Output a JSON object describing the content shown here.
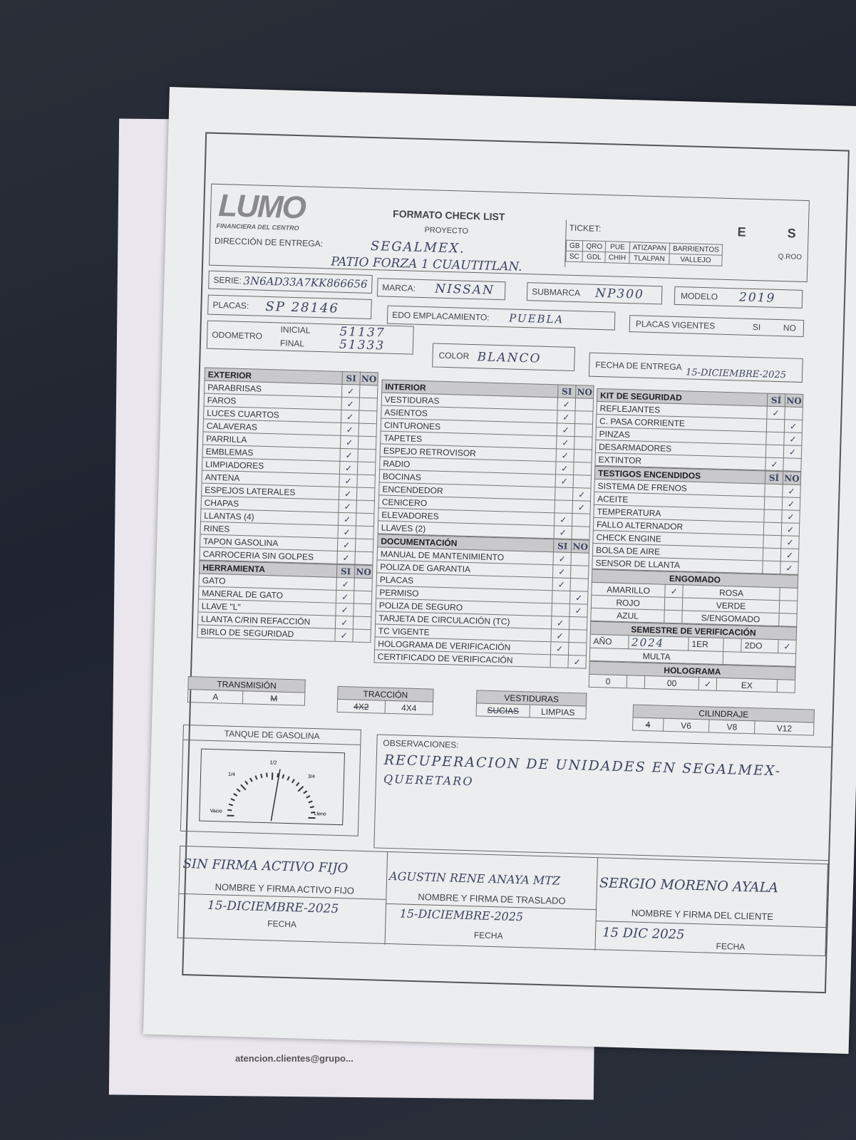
{
  "back_sheet": {
    "footer_text": "atencion.clientes@grupo..."
  },
  "header": {
    "logo_text": "LUMO",
    "logo_sub": "FINANCIERA DEL CENTRO",
    "title": "FORMATO CHECK LIST",
    "proyecto_label": "PROYECTO",
    "proyecto_value": "SEGALMEX.",
    "direccion_label": "DIRECCIÓN DE ENTREGA:",
    "direccion_value": "PATIO FORZA 1 CUAUTITLAN.",
    "ticket_label": "TICKET:",
    "e": "E",
    "s": "S",
    "locations_row1": [
      "GB",
      "QRO",
      "PUE",
      "ATIZAPAN",
      "BARRIENTOS"
    ],
    "locations_row2": [
      "SC",
      "GDL",
      "CHIH",
      "TLALPAN",
      "VALLEJO"
    ],
    "qroo": "Q.ROO"
  },
  "vehicle": {
    "serie_label": "SERIE:",
    "serie": "3N6AD33A7KK866656",
    "marca_label": "MARCA:",
    "marca": "NISSAN",
    "submarca_label": "SUBMARCA",
    "submarca": "NP300",
    "modelo_label": "MODELO",
    "modelo": "2019",
    "placas_label": "PLACAS:",
    "placas": "SP 28146",
    "edo_label": "EDO EMPLACAMIENTO:",
    "edo": "PUEBLA",
    "placas_vigentes_label": "PLACAS VIGENTES",
    "si": "SI",
    "no": "NO",
    "odometro_label": "ODOMETRO",
    "inicial_label": "INICIAL",
    "inicial": "51137",
    "final_label": "FINAL",
    "final": "51333",
    "color_label": "COLOR",
    "color": "BLANCO",
    "fecha_label": "FECHA DE ENTREGA",
    "fecha": "15-DICIEMBRE-2025"
  },
  "mark": "✓",
  "exterior": {
    "title": "EXTERIOR",
    "si": "SI",
    "no": "NO",
    "items": [
      {
        "label": "PARABRISAS",
        "v": "si"
      },
      {
        "label": "FAROS",
        "v": "si"
      },
      {
        "label": "LUCES CUARTOS",
        "v": "si"
      },
      {
        "label": "CALAVERAS",
        "v": "si"
      },
      {
        "label": "PARRILLA",
        "v": "si"
      },
      {
        "label": "EMBLEMAS",
        "v": "si"
      },
      {
        "label": "LIMPIADORES",
        "v": "si"
      },
      {
        "label": "ANTENA",
        "v": "si"
      },
      {
        "label": "ESPEJOS LATERALES",
        "v": "si"
      },
      {
        "label": "CHAPAS",
        "v": "si"
      },
      {
        "label": "LLANTAS (4)",
        "v": "si"
      },
      {
        "label": "RINES",
        "v": "si"
      },
      {
        "label": "TAPON GASOLINA",
        "v": "si"
      },
      {
        "label": "CARROCERIA SIN GOLPES",
        "v": "si"
      }
    ]
  },
  "herramienta": {
    "title": "HERRAMIENTA",
    "si": "SI",
    "no": "NO",
    "items": [
      {
        "label": "GATO",
        "v": "si"
      },
      {
        "label": "MANERAL DE GATO",
        "v": "si"
      },
      {
        "label": "LLAVE \"L\"",
        "v": "si"
      },
      {
        "label": "LLANTA C/RIN REFACCIÓN",
        "v": "si"
      },
      {
        "label": "BIRLO DE SEGURIDAD",
        "v": "si"
      }
    ]
  },
  "interior": {
    "title": "INTERIOR",
    "si": "SI",
    "no": "NO",
    "items": [
      {
        "label": "VESTIDURAS",
        "v": "si"
      },
      {
        "label": "ASIENTOS",
        "v": "si"
      },
      {
        "label": "CINTURONES",
        "v": "si"
      },
      {
        "label": "TAPETES",
        "v": "si"
      },
      {
        "label": "ESPEJO RETROVISOR",
        "v": "si"
      },
      {
        "label": "RADIO",
        "v": "si"
      },
      {
        "label": "BOCINAS",
        "v": "si"
      },
      {
        "label": "ENCENDEDOR",
        "v": "no"
      },
      {
        "label": "CENICERO",
        "v": "no"
      },
      {
        "label": "ELEVADORES",
        "v": "si"
      },
      {
        "label": "LLAVES (2)",
        "v": "si"
      }
    ]
  },
  "documentacion": {
    "title": "DOCUMENTACIÓN",
    "si": "SI",
    "no": "NO",
    "items": [
      {
        "label": "MANUAL DE MANTENIMIENTO",
        "v": "si"
      },
      {
        "label": "POLIZA DE GARANTIA",
        "v": "si"
      },
      {
        "label": "PLACAS",
        "v": "si"
      },
      {
        "label": "PERMISO",
        "v": "no"
      },
      {
        "label": "POLIZA DE SEGURO",
        "v": "no"
      },
      {
        "label": "TARJETA DE CIRCULACIÓN (TC)",
        "v": "si"
      },
      {
        "label": "TC VIGENTE",
        "v": "si"
      },
      {
        "label": "HOLOGRAMA DE VERIFICACIÓN",
        "v": "si"
      },
      {
        "label": "CERTIFICADO DE VERIFICACIÓN",
        "v": "no"
      }
    ]
  },
  "kit": {
    "title": "KIT DE SEGURIDAD",
    "si": "SÍ",
    "no": "NO",
    "items": [
      {
        "label": "REFLEJANTES",
        "v": "si"
      },
      {
        "label": "C. PASA CORRIENTE",
        "v": "no"
      },
      {
        "label": "PINZAS",
        "v": "no"
      },
      {
        "label": "DESARMADORES",
        "v": "no"
      },
      {
        "label": "EXTINTOR",
        "v": "si"
      }
    ]
  },
  "testigos": {
    "title": "TESTIGOS ENCENDIDOS",
    "si": "SÍ",
    "no": "NO",
    "items": [
      {
        "label": "SISTEMA DE FRENOS",
        "v": "no"
      },
      {
        "label": "ACEITE",
        "v": "no"
      },
      {
        "label": "TEMPERATURA",
        "v": "no"
      },
      {
        "label": "FALLO ALTERNADOR",
        "v": "no"
      },
      {
        "label": "CHECK ENGINE",
        "v": "no"
      },
      {
        "label": "BOLSA DE AIRE",
        "v": "no"
      },
      {
        "label": "SENSOR DE LLANTA",
        "v": "no"
      }
    ]
  },
  "engomado": {
    "title": "ENGOMADO",
    "left": [
      "AMARILLO",
      "ROJO",
      "AZUL"
    ],
    "right": [
      "ROSA",
      "VERDE",
      "S/ENGOMADO"
    ],
    "selected": "AMARILLO"
  },
  "semestre": {
    "title": "SEMESTRE DE VERIFICACIÓN",
    "ano_label": "AÑO",
    "ano": "2024",
    "primero": "1ER",
    "segundo": "2DO",
    "selected": "2DO",
    "multa": "MULTA"
  },
  "holograma": {
    "title": "HOLOGRAMA",
    "options": [
      "0",
      "00",
      "EX"
    ],
    "selected": "00"
  },
  "transmision": {
    "title": "TRANSMISIÓN",
    "options": [
      "A",
      "M"
    ],
    "selected": "M"
  },
  "traccion": {
    "title": "TRACCIÓN",
    "options": [
      "4X2",
      "4X4"
    ],
    "selected": "4X2"
  },
  "vestiduras": {
    "title": "VESTIDURAS",
    "options": [
      "SUCIAS",
      "LIMPIAS"
    ],
    "selected": "SUCIAS"
  },
  "cilindraje": {
    "title": "CILINDRAJE",
    "options": [
      "4",
      "V6",
      "V8",
      "V12"
    ],
    "selected": "4"
  },
  "tanque": {
    "title": "TANQUE DE GASOLINA",
    "vacio": "Vacio",
    "lleno": "Lleno",
    "q1": "1/4",
    "q2": "1/2",
    "q3": "3/4",
    "level": 0.55
  },
  "observaciones": {
    "label": "OBSERVACIONES:",
    "line1": "RECUPERACION DE UNIDADES EN SEGALMEX-",
    "line2": "QUERETARO"
  },
  "firmas": {
    "activo_name": "SIN FIRMA ACTIVO FIJO",
    "activo_label": "NOMBRE Y FIRMA ACTIVO FIJO",
    "activo_fecha": "15-DICIEMBRE-2025",
    "traslado_name": "AGUSTIN RENE ANAYA MTZ",
    "traslado_label": "NOMBRE Y FIRMA DE TRASLADO",
    "traslado_fecha": "15-DICIEMBRE-2025",
    "cliente_name": "SERGIO MORENO AYALA",
    "cliente_label": "NOMBRE Y FIRMA DEL CLIENTE",
    "cliente_fecha": "15 DIC 2025",
    "fecha_label": "FECHA"
  }
}
